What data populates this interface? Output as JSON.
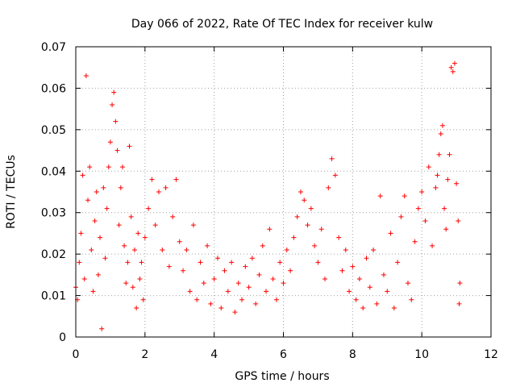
{
  "chart_data": {
    "type": "scatter",
    "title": "Day 066 of 2022, Rate Of TEC Index for receiver kulw",
    "xlabel": "GPS time / hours",
    "ylabel": "ROTI / TECUs",
    "xlim": [
      0,
      12
    ],
    "ylim": [
      0,
      0.07
    ],
    "xticks": [
      0,
      2,
      4,
      6,
      8,
      10,
      12
    ],
    "yticks": [
      0,
      0.01,
      0.02,
      0.03,
      0.04,
      0.05,
      0.06,
      0.07
    ],
    "xtick_labels": [
      "0",
      "2",
      "4",
      "6",
      "8",
      "10",
      "12"
    ],
    "ytick_labels": [
      "0",
      "0.01",
      "0.02",
      "0.03",
      "0.04",
      "0.05",
      "0.06",
      "0.07"
    ],
    "grid": true,
    "marker": "+",
    "color": "#ff0000",
    "series": [
      {
        "name": "ROTI",
        "points": [
          [
            0.0,
            0.012
          ],
          [
            0.05,
            0.009
          ],
          [
            0.1,
            0.018
          ],
          [
            0.15,
            0.025
          ],
          [
            0.2,
            0.039
          ],
          [
            0.25,
            0.014
          ],
          [
            0.3,
            0.063
          ],
          [
            0.35,
            0.033
          ],
          [
            0.4,
            0.041
          ],
          [
            0.45,
            0.021
          ],
          [
            0.5,
            0.011
          ],
          [
            0.55,
            0.028
          ],
          [
            0.6,
            0.035
          ],
          [
            0.65,
            0.015
          ],
          [
            0.7,
            0.024
          ],
          [
            0.75,
            0.002
          ],
          [
            0.8,
            0.036
          ],
          [
            0.85,
            0.019
          ],
          [
            0.9,
            0.031
          ],
          [
            0.95,
            0.041
          ],
          [
            1.0,
            0.047
          ],
          [
            1.05,
            0.056
          ],
          [
            1.1,
            0.059
          ],
          [
            1.15,
            0.052
          ],
          [
            1.2,
            0.045
          ],
          [
            1.25,
            0.027
          ],
          [
            1.3,
            0.036
          ],
          [
            1.35,
            0.041
          ],
          [
            1.4,
            0.022
          ],
          [
            1.45,
            0.013
          ],
          [
            1.5,
            0.018
          ],
          [
            1.55,
            0.046
          ],
          [
            1.6,
            0.029
          ],
          [
            1.65,
            0.012
          ],
          [
            1.7,
            0.021
          ],
          [
            1.75,
            0.007
          ],
          [
            1.8,
            0.025
          ],
          [
            1.85,
            0.014
          ],
          [
            1.9,
            0.018
          ],
          [
            1.95,
            0.009
          ],
          [
            2.0,
            0.024
          ],
          [
            2.1,
            0.031
          ],
          [
            2.2,
            0.038
          ],
          [
            2.3,
            0.027
          ],
          [
            2.4,
            0.035
          ],
          [
            2.5,
            0.021
          ],
          [
            2.6,
            0.036
          ],
          [
            2.7,
            0.017
          ],
          [
            2.8,
            0.029
          ],
          [
            2.9,
            0.038
          ],
          [
            3.0,
            0.023
          ],
          [
            3.1,
            0.016
          ],
          [
            3.2,
            0.021
          ],
          [
            3.3,
            0.011
          ],
          [
            3.4,
            0.027
          ],
          [
            3.5,
            0.009
          ],
          [
            3.6,
            0.018
          ],
          [
            3.7,
            0.013
          ],
          [
            3.8,
            0.022
          ],
          [
            3.9,
            0.008
          ],
          [
            4.0,
            0.014
          ],
          [
            4.1,
            0.019
          ],
          [
            4.2,
            0.007
          ],
          [
            4.3,
            0.016
          ],
          [
            4.4,
            0.011
          ],
          [
            4.5,
            0.018
          ],
          [
            4.6,
            0.006
          ],
          [
            4.7,
            0.013
          ],
          [
            4.8,
            0.009
          ],
          [
            4.9,
            0.017
          ],
          [
            5.0,
            0.012
          ],
          [
            5.1,
            0.019
          ],
          [
            5.2,
            0.008
          ],
          [
            5.3,
            0.015
          ],
          [
            5.4,
            0.022
          ],
          [
            5.5,
            0.011
          ],
          [
            5.6,
            0.026
          ],
          [
            5.7,
            0.014
          ],
          [
            5.8,
            0.009
          ],
          [
            5.9,
            0.018
          ],
          [
            6.0,
            0.013
          ],
          [
            6.1,
            0.021
          ],
          [
            6.2,
            0.016
          ],
          [
            6.3,
            0.024
          ],
          [
            6.4,
            0.029
          ],
          [
            6.5,
            0.035
          ],
          [
            6.6,
            0.033
          ],
          [
            6.7,
            0.027
          ],
          [
            6.8,
            0.031
          ],
          [
            6.9,
            0.022
          ],
          [
            7.0,
            0.018
          ],
          [
            7.1,
            0.026
          ],
          [
            7.2,
            0.014
          ],
          [
            7.3,
            0.036
          ],
          [
            7.4,
            0.043
          ],
          [
            7.5,
            0.039
          ],
          [
            7.6,
            0.024
          ],
          [
            7.7,
            0.016
          ],
          [
            7.8,
            0.021
          ],
          [
            7.9,
            0.011
          ],
          [
            8.0,
            0.017
          ],
          [
            8.1,
            0.009
          ],
          [
            8.2,
            0.014
          ],
          [
            8.3,
            0.007
          ],
          [
            8.4,
            0.019
          ],
          [
            8.5,
            0.012
          ],
          [
            8.6,
            0.021
          ],
          [
            8.7,
            0.008
          ],
          [
            8.8,
            0.034
          ],
          [
            8.9,
            0.015
          ],
          [
            9.0,
            0.011
          ],
          [
            9.1,
            0.025
          ],
          [
            9.2,
            0.007
          ],
          [
            9.3,
            0.018
          ],
          [
            9.4,
            0.029
          ],
          [
            9.5,
            0.034
          ],
          [
            9.6,
            0.013
          ],
          [
            9.7,
            0.009
          ],
          [
            9.8,
            0.023
          ],
          [
            9.9,
            0.031
          ],
          [
            10.0,
            0.035
          ],
          [
            10.1,
            0.028
          ],
          [
            10.2,
            0.041
          ],
          [
            10.3,
            0.022
          ],
          [
            10.4,
            0.036
          ],
          [
            10.45,
            0.039
          ],
          [
            10.5,
            0.044
          ],
          [
            10.55,
            0.049
          ],
          [
            10.6,
            0.051
          ],
          [
            10.65,
            0.031
          ],
          [
            10.7,
            0.026
          ],
          [
            10.75,
            0.038
          ],
          [
            10.8,
            0.044
          ],
          [
            10.85,
            0.065
          ],
          [
            10.9,
            0.064
          ],
          [
            10.95,
            0.066
          ],
          [
            11.0,
            0.037
          ],
          [
            11.05,
            0.028
          ],
          [
            11.08,
            0.008
          ],
          [
            11.1,
            0.013
          ]
        ]
      }
    ]
  }
}
